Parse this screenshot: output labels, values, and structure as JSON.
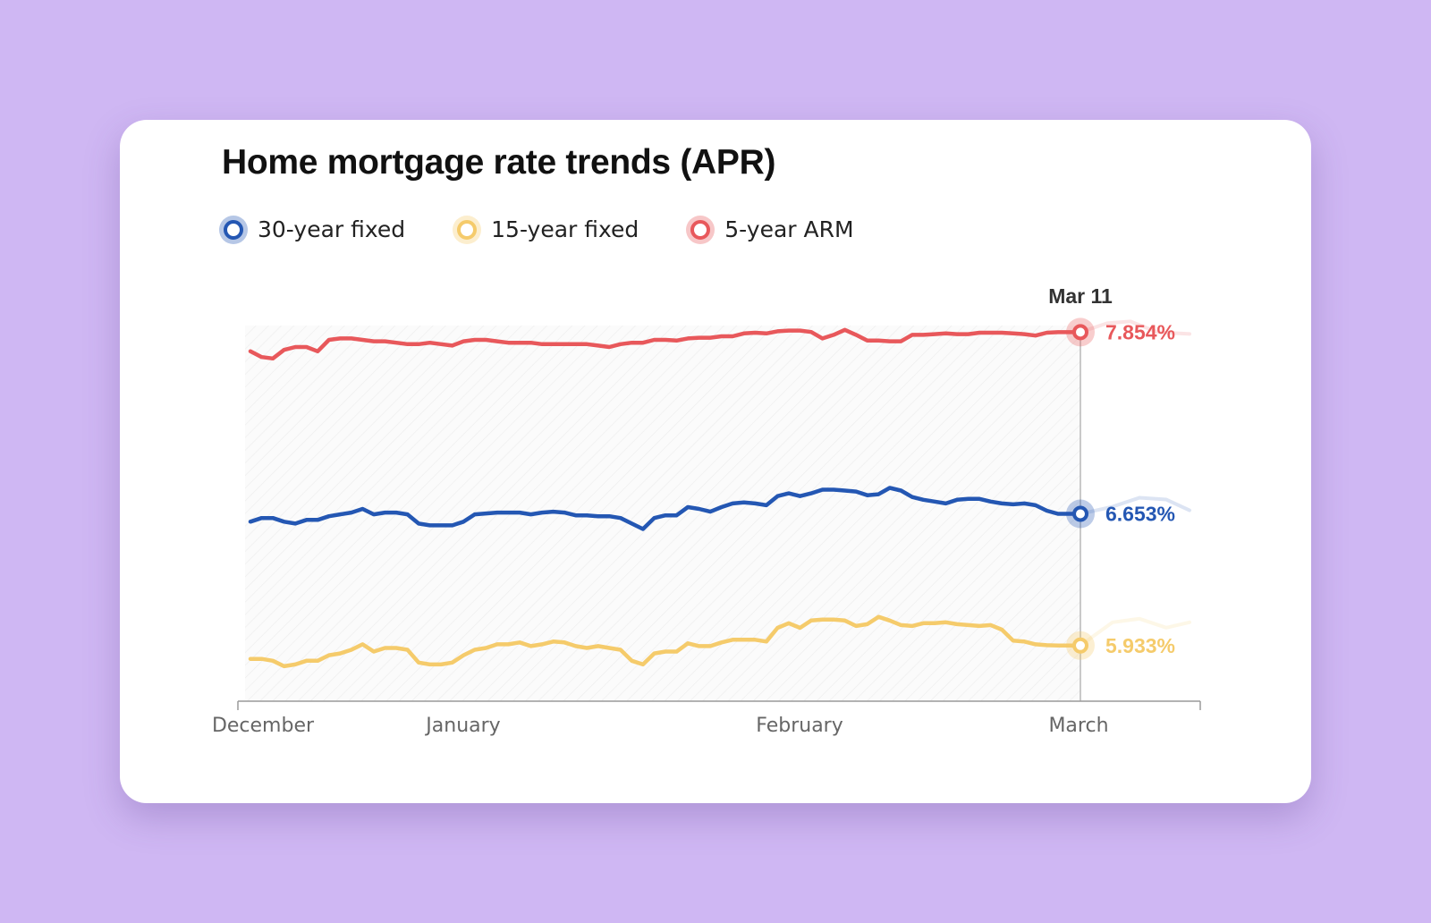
{
  "chart_data": {
    "type": "line",
    "title": "Home mortgage rate trends (APR)",
    "xlabel": "",
    "ylabel": "",
    "x_tick_labels": [
      "December",
      "January",
      "February",
      "March"
    ],
    "highlight_date_label": "Mar 11",
    "grid": false,
    "legend_position": "top-left",
    "series": [
      {
        "name": "30-year fixed",
        "color": "#2457b3",
        "last_value_label": "6.653%",
        "values": [
          6.61,
          6.63,
          6.63,
          6.61,
          6.6,
          6.62,
          6.62,
          6.64,
          6.65,
          6.66,
          6.68,
          6.65,
          6.66,
          6.66,
          6.65,
          6.6,
          6.59,
          6.59,
          6.59,
          6.61,
          6.65,
          6.655,
          6.66,
          6.66,
          6.66,
          6.65,
          6.66,
          6.665,
          6.66,
          6.645,
          6.645,
          6.64,
          6.64,
          6.63,
          6.6,
          6.57,
          6.63,
          6.645,
          6.645,
          6.69,
          6.68,
          6.665,
          6.69,
          6.71,
          6.715,
          6.71,
          6.7,
          6.75,
          6.765,
          6.75,
          6.765,
          6.785,
          6.785,
          6.78,
          6.775,
          6.755,
          6.76,
          6.795,
          6.78,
          6.745,
          6.73,
          6.72,
          6.71,
          6.73,
          6.735,
          6.735,
          6.72,
          6.71,
          6.705,
          6.71,
          6.7,
          6.67,
          6.653,
          6.653,
          6.653
        ]
      },
      {
        "name": "15-year fixed",
        "color": "#f5cb6b",
        "last_value_label": "5.933%",
        "values": [
          5.86,
          5.86,
          5.85,
          5.82,
          5.83,
          5.85,
          5.85,
          5.88,
          5.89,
          5.91,
          5.94,
          5.9,
          5.92,
          5.92,
          5.91,
          5.84,
          5.83,
          5.83,
          5.84,
          5.88,
          5.91,
          5.92,
          5.94,
          5.94,
          5.95,
          5.93,
          5.94,
          5.955,
          5.95,
          5.93,
          5.92,
          5.93,
          5.92,
          5.91,
          5.85,
          5.83,
          5.89,
          5.9,
          5.9,
          5.945,
          5.93,
          5.93,
          5.95,
          5.965,
          5.965,
          5.965,
          5.955,
          6.03,
          6.055,
          6.03,
          6.07,
          6.075,
          6.075,
          6.07,
          6.04,
          6.05,
          6.09,
          6.07,
          6.045,
          6.04,
          6.055,
          6.055,
          6.06,
          6.05,
          6.045,
          6.04,
          6.045,
          6.02,
          5.96,
          5.955,
          5.94,
          5.935,
          5.933,
          5.933,
          5.933
        ]
      },
      {
        "name": "5-year ARM",
        "color": "#e8585b",
        "last_value_label": "7.854%",
        "values": [
          7.72,
          7.68,
          7.67,
          7.73,
          7.75,
          7.75,
          7.72,
          7.8,
          7.81,
          7.81,
          7.8,
          7.79,
          7.79,
          7.78,
          7.77,
          7.77,
          7.78,
          7.77,
          7.76,
          7.79,
          7.8,
          7.8,
          7.79,
          7.78,
          7.78,
          7.78,
          7.77,
          7.77,
          7.77,
          7.77,
          7.77,
          7.76,
          7.75,
          7.77,
          7.78,
          7.78,
          7.8,
          7.8,
          7.795,
          7.81,
          7.815,
          7.815,
          7.825,
          7.825,
          7.845,
          7.85,
          7.845,
          7.86,
          7.865,
          7.865,
          7.855,
          7.81,
          7.835,
          7.87,
          7.835,
          7.795,
          7.795,
          7.79,
          7.79,
          7.835,
          7.835,
          7.84,
          7.845,
          7.84,
          7.84,
          7.85,
          7.85,
          7.85,
          7.845,
          7.84,
          7.83,
          7.85,
          7.854,
          7.854,
          7.854
        ]
      }
    ]
  }
}
